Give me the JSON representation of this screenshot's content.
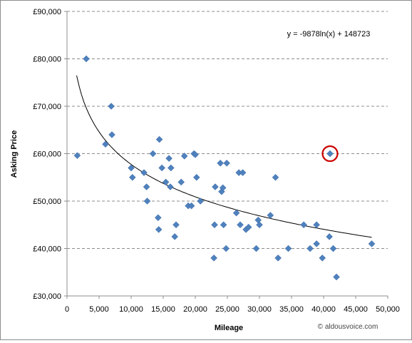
{
  "chart_data": {
    "type": "scatter",
    "xlabel": "Mileage",
    "ylabel": "Asking Price",
    "xlim": [
      0,
      50000
    ],
    "ylim": [
      30000,
      90000
    ],
    "x_ticks": [
      "0",
      "5,000",
      "10,000",
      "15,000",
      "20,000",
      "25,000",
      "30,000",
      "35,000",
      "40,000",
      "45,000",
      "50,000"
    ],
    "y_ticks": [
      "£30,000",
      "£40,000",
      "£50,000",
      "£60,000",
      "£70,000",
      "£80,000",
      "£90,000"
    ],
    "gridlines": "horizontal dashed",
    "marker_color": "#4f81bd",
    "trendline": {
      "type": "logarithmic",
      "equation": "y = -9878ln(x) + 148723",
      "a": -9878,
      "b": 148723,
      "x_range": [
        1500,
        47500
      ],
      "color": "#000000"
    },
    "highlight": {
      "x": 41000,
      "y": 60000,
      "color": "#cc0000"
    },
    "credit": "© aldousvoice.com",
    "points": [
      {
        "x": 1600,
        "y": 59600
      },
      {
        "x": 3000,
        "y": 80000
      },
      {
        "x": 6000,
        "y": 62000
      },
      {
        "x": 6900,
        "y": 70000
      },
      {
        "x": 7000,
        "y": 64000
      },
      {
        "x": 10000,
        "y": 57000
      },
      {
        "x": 10200,
        "y": 55000
      },
      {
        "x": 12000,
        "y": 56000
      },
      {
        "x": 12400,
        "y": 53000
      },
      {
        "x": 12500,
        "y": 50000
      },
      {
        "x": 13400,
        "y": 60000
      },
      {
        "x": 14200,
        "y": 46500
      },
      {
        "x": 14300,
        "y": 44000
      },
      {
        "x": 14400,
        "y": 63000
      },
      {
        "x": 14800,
        "y": 57000
      },
      {
        "x": 15400,
        "y": 54000
      },
      {
        "x": 15900,
        "y": 59000
      },
      {
        "x": 16100,
        "y": 53000
      },
      {
        "x": 16200,
        "y": 57000
      },
      {
        "x": 16800,
        "y": 42500
      },
      {
        "x": 17000,
        "y": 45000
      },
      {
        "x": 17800,
        "y": 54000
      },
      {
        "x": 18300,
        "y": 59500
      },
      {
        "x": 18900,
        "y": 49000
      },
      {
        "x": 19400,
        "y": 49000
      },
      {
        "x": 19800,
        "y": 60000
      },
      {
        "x": 20000,
        "y": 59800
      },
      {
        "x": 20200,
        "y": 55000
      },
      {
        "x": 20800,
        "y": 50000
      },
      {
        "x": 22900,
        "y": 38000
      },
      {
        "x": 23000,
        "y": 45000
      },
      {
        "x": 23100,
        "y": 53000
      },
      {
        "x": 23900,
        "y": 58000
      },
      {
        "x": 24100,
        "y": 52000
      },
      {
        "x": 24300,
        "y": 52800
      },
      {
        "x": 24400,
        "y": 45000
      },
      {
        "x": 24800,
        "y": 40000
      },
      {
        "x": 24900,
        "y": 58000
      },
      {
        "x": 26400,
        "y": 47500
      },
      {
        "x": 26800,
        "y": 56000
      },
      {
        "x": 27000,
        "y": 45000
      },
      {
        "x": 27400,
        "y": 56000
      },
      {
        "x": 27900,
        "y": 44000
      },
      {
        "x": 28300,
        "y": 44500
      },
      {
        "x": 29500,
        "y": 40000
      },
      {
        "x": 29800,
        "y": 46000
      },
      {
        "x": 30000,
        "y": 45000
      },
      {
        "x": 31700,
        "y": 47000
      },
      {
        "x": 32500,
        "y": 55000
      },
      {
        "x": 32900,
        "y": 38000
      },
      {
        "x": 34500,
        "y": 40000
      },
      {
        "x": 36900,
        "y": 45000
      },
      {
        "x": 37900,
        "y": 40000
      },
      {
        "x": 38900,
        "y": 45000
      },
      {
        "x": 38900,
        "y": 41000
      },
      {
        "x": 39800,
        "y": 38000
      },
      {
        "x": 40900,
        "y": 42500
      },
      {
        "x": 41000,
        "y": 60000
      },
      {
        "x": 41500,
        "y": 40000
      },
      {
        "x": 42000,
        "y": 34000
      },
      {
        "x": 47500,
        "y": 41000
      }
    ]
  }
}
